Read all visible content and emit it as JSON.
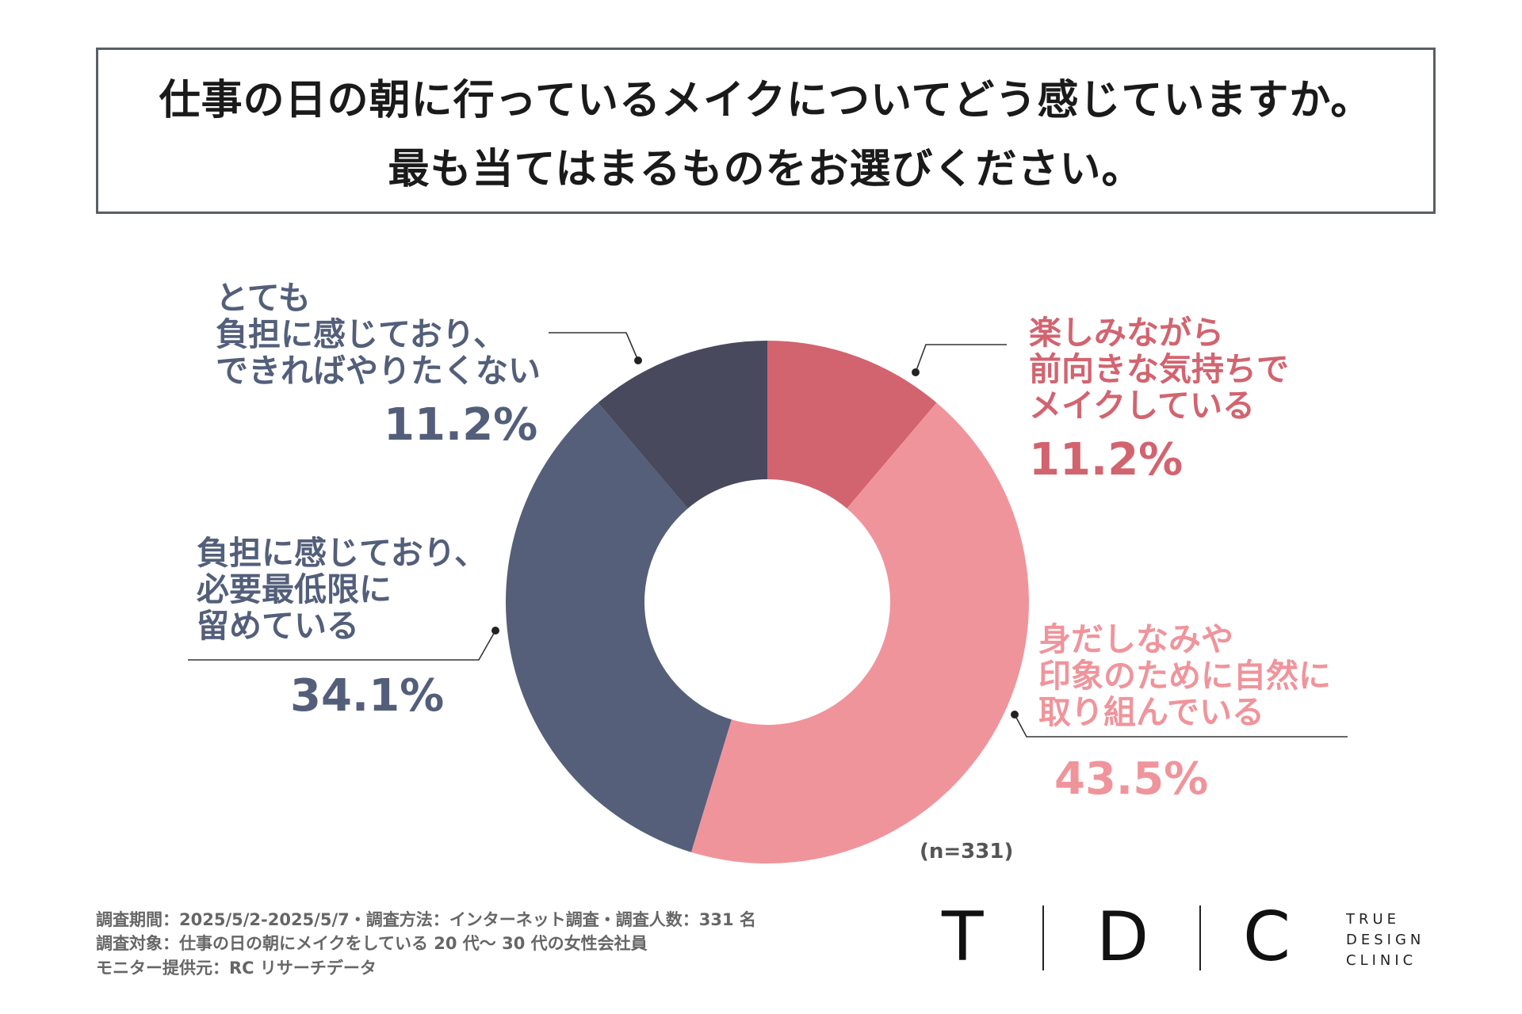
{
  "title": {
    "line1": "仕事の日の朝に行っているメイクについてどう感じていますか。",
    "line2": "最も当てはまるものをお選びください。"
  },
  "chart_data": {
    "type": "pie",
    "donut": true,
    "title": "仕事の日の朝に行っているメイクについてどう感じていますか。最も当てはまるものをお選びください。",
    "n_label": "(n=331)",
    "slices": [
      {
        "id": "tanoshimi",
        "lines": [
          "楽しみながら",
          "前向きな気持ちで",
          "メイクしている"
        ],
        "value": 11.2,
        "pct_label": "11.2%",
        "color": "#d2646f"
      },
      {
        "id": "midashinami",
        "lines": [
          "身だしなみや",
          "印象のために自然に",
          "取り組んでいる"
        ],
        "value": 43.5,
        "pct_label": "43.5%",
        "color": "#f0949b"
      },
      {
        "id": "hitsuyo",
        "lines": [
          "負担に感じており、",
          "必要最低限に",
          "留めている"
        ],
        "value": 34.1,
        "pct_label": "34.1%",
        "color": "#555f79"
      },
      {
        "id": "totemo",
        "lines": [
          "とても",
          "負担に感じており、",
          "できればやりたくない"
        ],
        "value": 11.2,
        "pct_label": "11.2%",
        "color": "#48495d"
      }
    ]
  },
  "footer": {
    "line1": "調査期間：2025/5/2-2025/5/7・調査方法：インターネット調査・調査人数：331 名",
    "line2": "調査対象：仕事の日の朝にメイクをしている 20 代〜 30 代の女性会社員",
    "line3": "モニター提供元：RC リサーチデータ"
  },
  "brand": {
    "letters": [
      "T",
      "D",
      "C"
    ],
    "sub": [
      "TRUE",
      "DESIGN",
      "CLINIC"
    ]
  }
}
